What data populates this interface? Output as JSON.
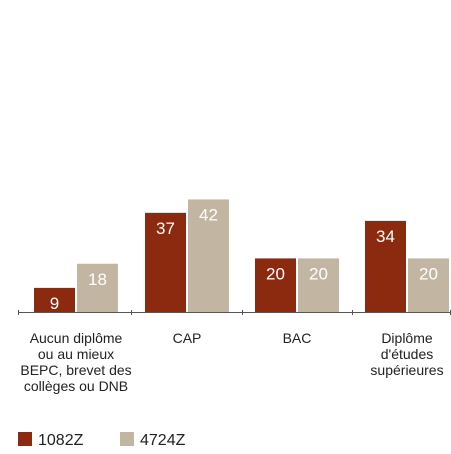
{
  "chart_data": {
    "type": "bar",
    "categories": [
      "Aucun diplôme ou au mieux BEPC, brevet des collèges ou DNB",
      "CAP",
      "BAC",
      "Diplôme d'études supérieures"
    ],
    "category_lines": [
      [
        "Aucun diplôme",
        "ou au mieux",
        "BEPC, brevet des",
        "collèges ou DNB"
      ],
      [
        "CAP"
      ],
      [
        "BAC"
      ],
      [
        "Diplôme",
        "d'études",
        "supérieures"
      ]
    ],
    "series": [
      {
        "name": "1082Z",
        "color": "#8b2a0e",
        "values": [
          9,
          37,
          20,
          34
        ]
      },
      {
        "name": "4724Z",
        "color": "#c2b6a3",
        "values": [
          18,
          42,
          20,
          20
        ]
      }
    ],
    "ylim": [
      0,
      44
    ],
    "grid": false,
    "legend": "bottom-left",
    "title": "",
    "xlabel": "",
    "ylabel": ""
  }
}
